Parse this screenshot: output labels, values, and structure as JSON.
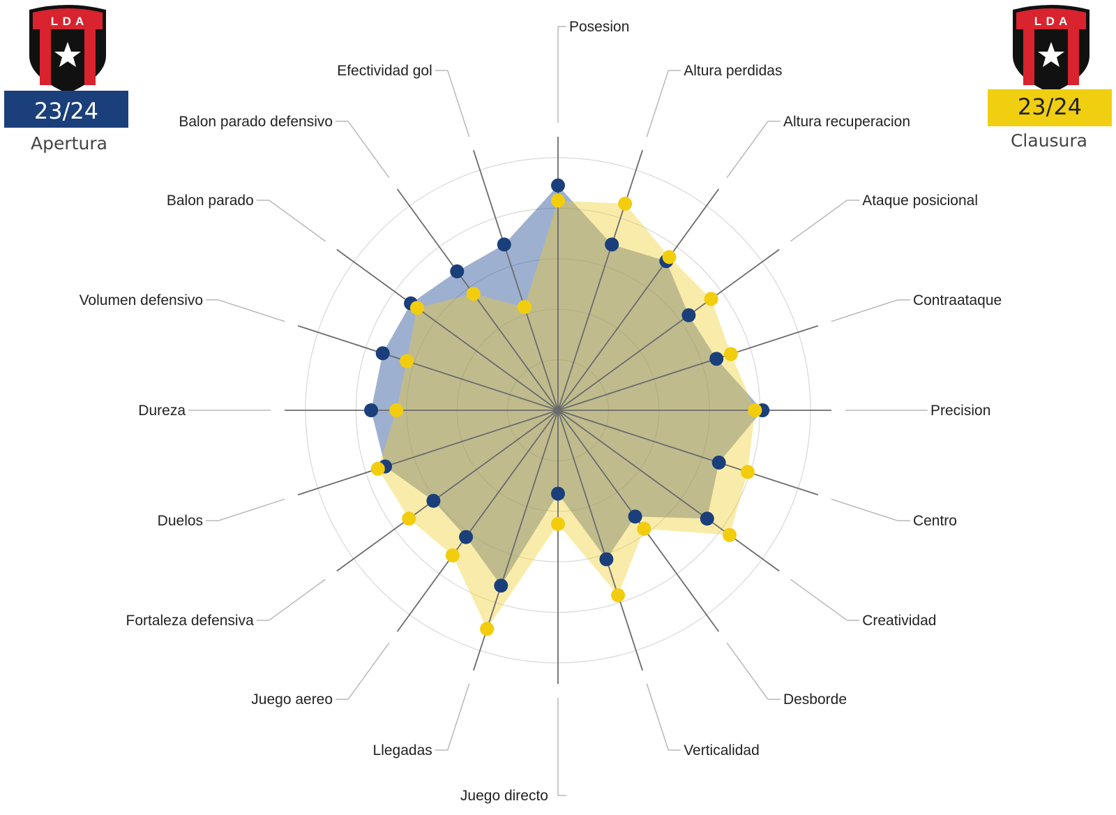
{
  "teams": [
    {
      "crest_text": "L D A",
      "season": "23/24",
      "tournament": "Apertura",
      "color": "#1a3f7a",
      "text_color": "#ffffff",
      "crest_icon": "lda-crest-icon"
    },
    {
      "crest_text": "L D A",
      "season": "23/24",
      "tournament": "Clausura",
      "color": "#f0cf10",
      "text_color": "#222222",
      "crest_icon": "lda-crest-icon"
    }
  ],
  "colors": {
    "apertura": "#1a3f7a",
    "apertura_fill": "rgba(40,80,150,0.45)",
    "clausura": "#f2cd0e",
    "clausura_fill": "rgba(240,205,40,0.40)",
    "crest_red": "#d9232e",
    "crest_black": "#111111"
  },
  "chart_data": {
    "type": "radar",
    "range": [
      0,
      100
    ],
    "grid_rings": [
      20,
      40,
      60,
      80,
      100
    ],
    "categories": [
      "Posesion",
      "Altura perdidas",
      "Altura recuperacion",
      "Ataque posicional",
      "Contraataque",
      "Precision",
      "Centro",
      "Creatividad",
      "Desborde",
      "Verticalidad",
      "Juego directo",
      "Llegadas",
      "Juego aereo",
      "Fortaleza defensiva",
      "Duelos",
      "Dureza",
      "Volumen defensivo",
      "Balon parado",
      "Balon parado defensivo",
      "Efectividad gol"
    ],
    "series": [
      {
        "name": "Apertura 23/24",
        "values": [
          89,
          69,
          73,
          64,
          66,
          81,
          67,
          73,
          52,
          62,
          33,
          73,
          62,
          61,
          72,
          74,
          73,
          72,
          68,
          69
        ]
      },
      {
        "name": "Clausura 23/24",
        "values": [
          83,
          86,
          75,
          75,
          72,
          78,
          79,
          84,
          58,
          77,
          45,
          91,
          71,
          73,
          75,
          64,
          63,
          69,
          57,
          43
        ]
      }
    ]
  }
}
